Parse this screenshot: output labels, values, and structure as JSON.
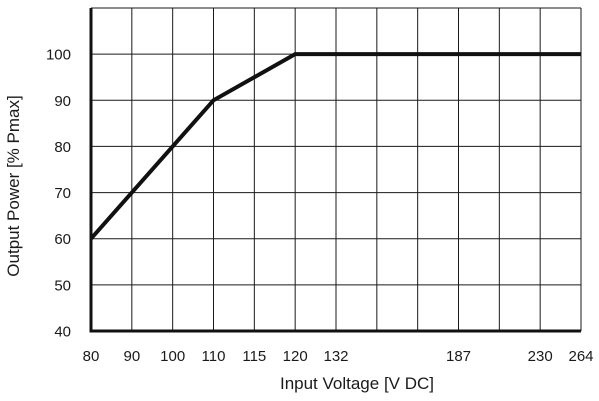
{
  "chart_data": {
    "type": "line",
    "title": "",
    "xlabel": "Input Voltage [V DC]",
    "ylabel": "Output Power [% Pmax]",
    "x_ticks": [
      "80",
      "90",
      "100",
      "110",
      "115",
      "120",
      "132",
      "",
      "",
      "187",
      "",
      "230",
      "264"
    ],
    "y_ticks": [
      "40",
      "50",
      "60",
      "70",
      "80",
      "90",
      "100"
    ],
    "ylim": [
      40,
      110
    ],
    "grid": true,
    "series": [
      {
        "x": [
          "80",
          "110",
          "120",
          "264"
        ],
        "y": [
          60,
          90,
          100,
          100
        ]
      }
    ]
  }
}
